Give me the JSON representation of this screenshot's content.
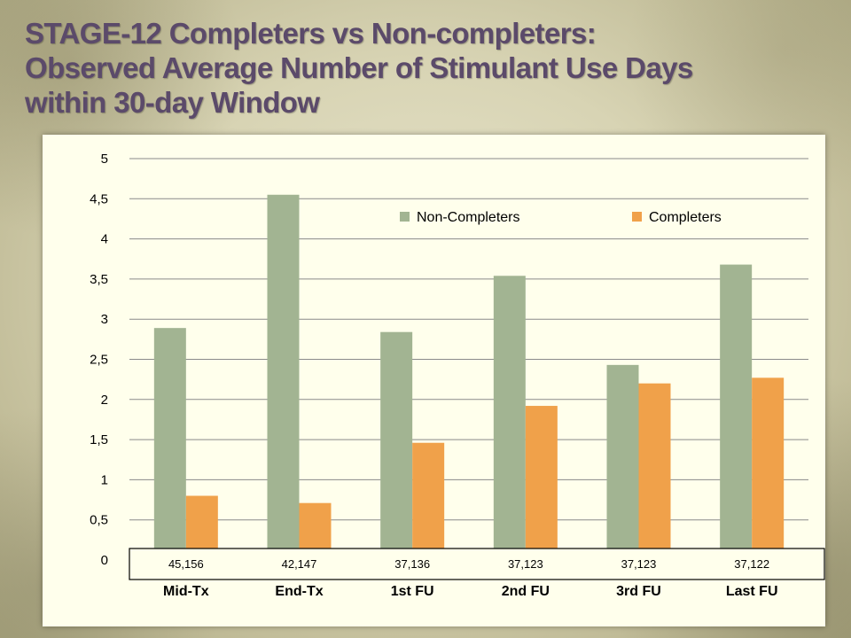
{
  "title_lines": [
    "STAGE-12 Completers vs Non-completers:",
    "Observed Average Number of Stimulant Use Days",
    "within 30-day Window"
  ],
  "chart_data": {
    "type": "bar",
    "title": "STAGE-12 Completers vs Non-completers: Observed Average Number of Stimulant Use Days within 30-day Window",
    "categories": [
      "Mid-Tx",
      "End-Tx",
      "1st FU",
      "2nd FU",
      "3rd FU",
      "Last FU"
    ],
    "sample_sizes": [
      "45,156",
      "42,147",
      "37,136",
      "37,123",
      "37,123",
      "37,122"
    ],
    "series": [
      {
        "name": "Non-Completers",
        "values": [
          2.89,
          4.55,
          2.84,
          3.54,
          2.43,
          3.68
        ],
        "color": "#a2b492"
      },
      {
        "name": "Completers",
        "values": [
          0.8,
          0.71,
          1.46,
          1.92,
          2.2,
          2.27
        ],
        "color": "#f0a14a"
      }
    ],
    "yticks": [
      "0",
      "0,5",
      "1",
      "1,5",
      "2",
      "2,5",
      "3",
      "3,5",
      "4",
      "4,5",
      "5"
    ],
    "ylim": [
      0,
      5
    ],
    "grid": true,
    "legend": "top-right",
    "xlabel": "",
    "ylabel": ""
  }
}
